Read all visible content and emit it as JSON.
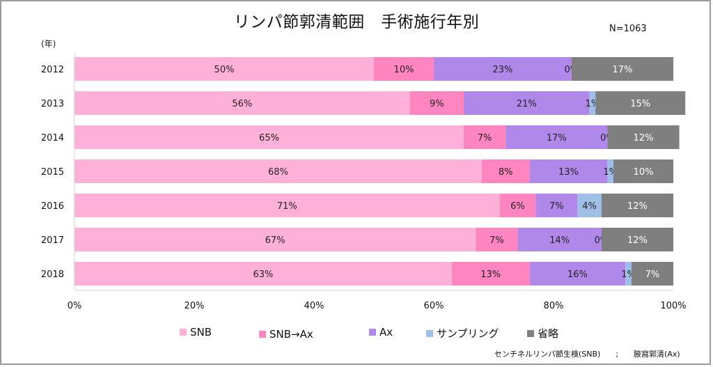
{
  "chart_data": {
    "type": "bar",
    "orientation": "horizontal",
    "stacked": "percent",
    "title": "リンパ節郭清範囲　手術施行年別",
    "annotation": "N=1063",
    "ylabel": "(年)",
    "xlabel": "",
    "xlim": [
      0,
      100
    ],
    "xticks": [
      "0%",
      "20%",
      "40%",
      "60%",
      "80%",
      "100%"
    ],
    "grid": false,
    "legend_position": "bottom",
    "categories": [
      "2012",
      "2013",
      "2014",
      "2015",
      "2016",
      "2017",
      "2018"
    ],
    "series": [
      {
        "name": "SNB",
        "color": "#ffb0d8",
        "label_color": "#222222",
        "values": [
          50,
          56,
          65,
          68,
          71,
          67,
          63
        ]
      },
      {
        "name": "SNB→Ax",
        "color": "#ff85c0",
        "label_color": "#222222",
        "values": [
          10,
          9,
          7,
          8,
          6,
          7,
          13
        ]
      },
      {
        "name": "Ax",
        "color": "#b088ea",
        "label_color": "#222222",
        "values": [
          23,
          21,
          17,
          13,
          7,
          14,
          16
        ]
      },
      {
        "name": "サンプリング",
        "color": "#9fc0e6",
        "label_color": "#222222",
        "values": [
          0,
          1,
          0,
          1,
          4,
          0,
          1
        ]
      },
      {
        "name": "省略",
        "color": "#7f7f7f",
        "label_color": "#ffffff",
        "values": [
          17,
          15,
          12,
          10,
          12,
          12,
          7
        ]
      }
    ],
    "footnote": "センチネルリンパ節生検(SNB)　　;　　腋窩郭清(Ax)"
  }
}
